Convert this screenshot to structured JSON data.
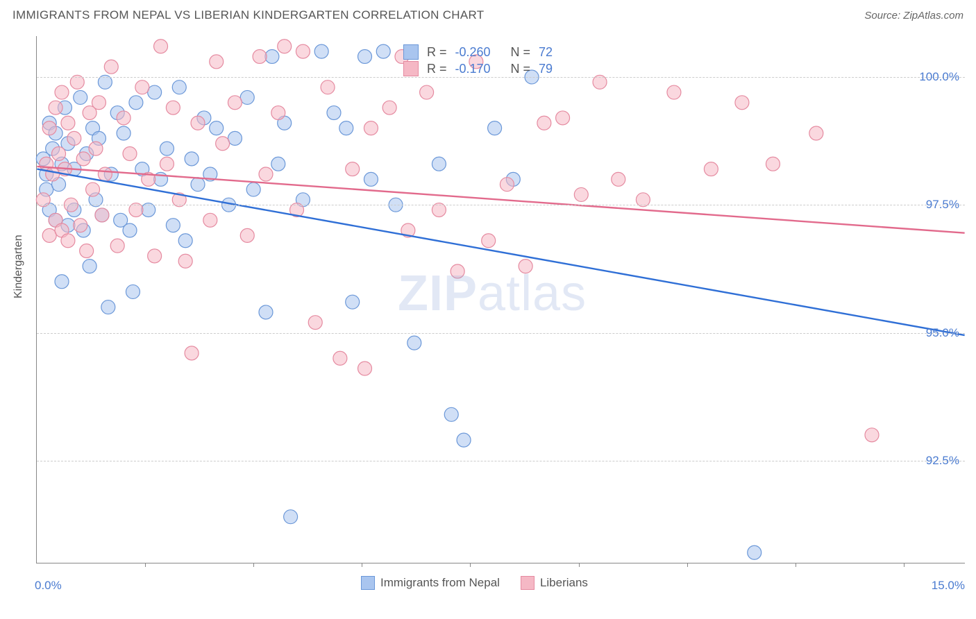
{
  "header": {
    "title": "IMMIGRANTS FROM NEPAL VS LIBERIAN KINDERGARTEN CORRELATION CHART",
    "source_prefix": "Source: ",
    "source_name": "ZipAtlas.com"
  },
  "chart": {
    "type": "scatter",
    "y_axis_title": "Kindergarten",
    "xlim": [
      0.0,
      15.0
    ],
    "ylim": [
      90.5,
      100.8
    ],
    "x_range_labels": {
      "min": "0.0%",
      "max": "15.0%"
    },
    "y_ticks": [
      {
        "value": 92.5,
        "label": "92.5%"
      },
      {
        "value": 95.0,
        "label": "95.0%"
      },
      {
        "value": 97.5,
        "label": "97.5%"
      },
      {
        "value": 100.0,
        "label": "100.0%"
      }
    ],
    "x_ticks": [
      1.75,
      3.5,
      5.25,
      7.0,
      8.75,
      10.5,
      12.25,
      14.0
    ],
    "grid_color": "#cccccc",
    "axis_color": "#888888",
    "background_color": "#ffffff",
    "tick_label_color": "#4a7bd0",
    "marker_radius": 10,
    "marker_opacity": 0.55,
    "watermark": {
      "text_bold": "ZIP",
      "text_rest": "atlas",
      "color": "#8fa8d8"
    },
    "series": [
      {
        "name": "Immigrants from Nepal",
        "color_fill": "#a9c5ef",
        "color_stroke": "#6a97d8",
        "line_color": "#2f6fd6",
        "r_value": "-0.260",
        "n_value": "72",
        "trend": {
          "x1": 0.0,
          "y1": 98.2,
          "x2": 15.0,
          "y2": 94.95
        },
        "points": [
          [
            0.1,
            98.4
          ],
          [
            0.15,
            97.8
          ],
          [
            0.15,
            98.1
          ],
          [
            0.2,
            97.4
          ],
          [
            0.2,
            99.1
          ],
          [
            0.25,
            98.6
          ],
          [
            0.3,
            97.2
          ],
          [
            0.3,
            98.9
          ],
          [
            0.35,
            97.9
          ],
          [
            0.4,
            96.0
          ],
          [
            0.4,
            98.3
          ],
          [
            0.45,
            99.4
          ],
          [
            0.5,
            97.1
          ],
          [
            0.5,
            98.7
          ],
          [
            0.6,
            98.2
          ],
          [
            0.6,
            97.4
          ],
          [
            0.7,
            99.6
          ],
          [
            0.75,
            97.0
          ],
          [
            0.8,
            98.5
          ],
          [
            0.85,
            96.3
          ],
          [
            0.9,
            99.0
          ],
          [
            0.95,
            97.6
          ],
          [
            1.0,
            98.8
          ],
          [
            1.05,
            97.3
          ],
          [
            1.1,
            99.9
          ],
          [
            1.15,
            95.5
          ],
          [
            1.2,
            98.1
          ],
          [
            1.3,
            99.3
          ],
          [
            1.35,
            97.2
          ],
          [
            1.4,
            98.9
          ],
          [
            1.5,
            97.0
          ],
          [
            1.55,
            95.8
          ],
          [
            1.6,
            99.5
          ],
          [
            1.7,
            98.2
          ],
          [
            1.8,
            97.4
          ],
          [
            1.9,
            99.7
          ],
          [
            2.0,
            98.0
          ],
          [
            2.1,
            98.6
          ],
          [
            2.2,
            97.1
          ],
          [
            2.3,
            99.8
          ],
          [
            2.4,
            96.8
          ],
          [
            2.5,
            98.4
          ],
          [
            2.6,
            97.9
          ],
          [
            2.7,
            99.2
          ],
          [
            2.8,
            98.1
          ],
          [
            2.9,
            99.0
          ],
          [
            3.1,
            97.5
          ],
          [
            3.2,
            98.8
          ],
          [
            3.4,
            99.6
          ],
          [
            3.5,
            97.8
          ],
          [
            3.7,
            95.4
          ],
          [
            3.8,
            100.4
          ],
          [
            3.9,
            98.3
          ],
          [
            4.0,
            99.1
          ],
          [
            4.1,
            91.4
          ],
          [
            4.3,
            97.6
          ],
          [
            4.6,
            100.5
          ],
          [
            4.8,
            99.3
          ],
          [
            5.0,
            99.0
          ],
          [
            5.1,
            95.6
          ],
          [
            5.3,
            100.4
          ],
          [
            5.4,
            98.0
          ],
          [
            5.6,
            100.5
          ],
          [
            5.8,
            97.5
          ],
          [
            6.1,
            94.8
          ],
          [
            6.5,
            98.3
          ],
          [
            6.7,
            93.4
          ],
          [
            6.9,
            92.9
          ],
          [
            7.4,
            99.0
          ],
          [
            7.7,
            98.0
          ],
          [
            8.0,
            100.0
          ],
          [
            11.6,
            90.7
          ]
        ]
      },
      {
        "name": "Liberians",
        "color_fill": "#f5b8c5",
        "color_stroke": "#e58aa0",
        "line_color": "#e26a8c",
        "r_value": "-0.170",
        "n_value": "79",
        "trend": {
          "x1": 0.0,
          "y1": 98.25,
          "x2": 15.0,
          "y2": 96.95
        },
        "points": [
          [
            0.1,
            97.6
          ],
          [
            0.15,
            98.3
          ],
          [
            0.2,
            99.0
          ],
          [
            0.2,
            96.9
          ],
          [
            0.25,
            98.1
          ],
          [
            0.3,
            97.2
          ],
          [
            0.3,
            99.4
          ],
          [
            0.35,
            98.5
          ],
          [
            0.4,
            97.0
          ],
          [
            0.4,
            99.7
          ],
          [
            0.45,
            98.2
          ],
          [
            0.5,
            96.8
          ],
          [
            0.5,
            99.1
          ],
          [
            0.55,
            97.5
          ],
          [
            0.6,
            98.8
          ],
          [
            0.65,
            99.9
          ],
          [
            0.7,
            97.1
          ],
          [
            0.75,
            98.4
          ],
          [
            0.8,
            96.6
          ],
          [
            0.85,
            99.3
          ],
          [
            0.9,
            97.8
          ],
          [
            0.95,
            98.6
          ],
          [
            1.0,
            99.5
          ],
          [
            1.05,
            97.3
          ],
          [
            1.1,
            98.1
          ],
          [
            1.2,
            100.2
          ],
          [
            1.3,
            96.7
          ],
          [
            1.4,
            99.2
          ],
          [
            1.5,
            98.5
          ],
          [
            1.6,
            97.4
          ],
          [
            1.7,
            99.8
          ],
          [
            1.8,
            98.0
          ],
          [
            1.9,
            96.5
          ],
          [
            2.0,
            100.6
          ],
          [
            2.1,
            98.3
          ],
          [
            2.2,
            99.4
          ],
          [
            2.3,
            97.6
          ],
          [
            2.4,
            96.4
          ],
          [
            2.5,
            94.6
          ],
          [
            2.6,
            99.1
          ],
          [
            2.8,
            97.2
          ],
          [
            2.9,
            100.3
          ],
          [
            3.0,
            98.7
          ],
          [
            3.2,
            99.5
          ],
          [
            3.4,
            96.9
          ],
          [
            3.6,
            100.4
          ],
          [
            3.7,
            98.1
          ],
          [
            3.9,
            99.3
          ],
          [
            4.0,
            100.6
          ],
          [
            4.2,
            97.4
          ],
          [
            4.3,
            100.5
          ],
          [
            4.5,
            95.2
          ],
          [
            4.7,
            99.8
          ],
          [
            4.9,
            94.5
          ],
          [
            5.1,
            98.2
          ],
          [
            5.3,
            94.3
          ],
          [
            5.4,
            99.0
          ],
          [
            5.7,
            99.4
          ],
          [
            5.9,
            100.4
          ],
          [
            6.0,
            97.0
          ],
          [
            6.3,
            99.7
          ],
          [
            6.5,
            97.4
          ],
          [
            6.8,
            96.2
          ],
          [
            7.1,
            100.3
          ],
          [
            7.3,
            96.8
          ],
          [
            7.6,
            97.9
          ],
          [
            7.9,
            96.3
          ],
          [
            8.2,
            99.1
          ],
          [
            8.5,
            99.2
          ],
          [
            8.8,
            97.7
          ],
          [
            9.1,
            99.9
          ],
          [
            9.4,
            98.0
          ],
          [
            9.8,
            97.6
          ],
          [
            10.3,
            99.7
          ],
          [
            10.9,
            98.2
          ],
          [
            11.4,
            99.5
          ],
          [
            11.9,
            98.3
          ],
          [
            12.6,
            98.9
          ],
          [
            13.5,
            93.0
          ]
        ]
      }
    ],
    "legend_top": {
      "r_label": "R =",
      "n_label": "N ="
    },
    "legend_bottom_labels": [
      "Immigrants from Nepal",
      "Liberians"
    ]
  }
}
